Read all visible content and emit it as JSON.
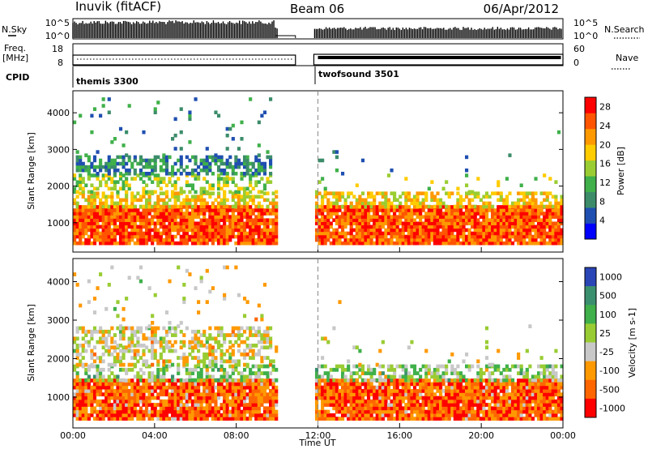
{
  "header": {
    "title": "Inuvik (fitACF)",
    "beam": "Beam 06",
    "date": "06/Apr/2012"
  },
  "status_panels": {
    "nsky_label": "N.Sky",
    "nsky_ticks": [
      "10^5",
      "10^0"
    ],
    "nsearch_label": "N.Search",
    "nsearch_ticks": [
      "10^5",
      "10^0"
    ],
    "freq_label_line1": "Freq.",
    "freq_label_line2": "[MHz]",
    "freq_ticks": [
      "18",
      "8"
    ],
    "nave_label": "Nave",
    "nave_ticks": [
      "60",
      "0"
    ],
    "cpid_label": "CPID",
    "cpid_segments": [
      {
        "name": "themis 3300",
        "start_hour": 0.0
      },
      {
        "name": "twofsound 3501",
        "start_hour": 12.0
      }
    ]
  },
  "x_axis": {
    "label": "Time UT",
    "ticks": [
      "00:00",
      "04:00",
      "08:00",
      "12:00",
      "16:00",
      "20:00",
      "00:00"
    ],
    "range_hours": [
      0,
      24
    ]
  },
  "chart_data": [
    {
      "type": "heatmap",
      "name": "power",
      "ylabel": "Slant Range [km]",
      "yticks": [
        "1000",
        "2000",
        "3000",
        "4000"
      ],
      "ylim": [
        200,
        4600
      ],
      "colorbar_label": "Power [dB]",
      "colorbar_ticks": [
        "4",
        "8",
        "12",
        "16",
        "20",
        "24",
        "28"
      ],
      "colorbar_range": [
        0,
        30
      ],
      "colorbar_colors": [
        "#0000ff",
        "#1f4fb0",
        "#3c8c6a",
        "#3fb04a",
        "#9acd32",
        "#ffcc00",
        "#ff9900",
        "#ff5500",
        "#ff0000"
      ],
      "data_gap_hours": [
        10.0,
        11.8
      ]
    },
    {
      "type": "heatmap",
      "name": "velocity",
      "ylabel": "Slant Range [km]",
      "yticks": [
        "1000",
        "2000",
        "3000",
        "4000"
      ],
      "ylim": [
        200,
        4600
      ],
      "colorbar_label": "Velocity [m s-1]",
      "colorbar_ticks": [
        "1000",
        "500",
        "100",
        "25",
        "-25",
        "-100",
        "-500",
        "-1000"
      ],
      "colorbar_range": [
        -1000,
        1000
      ],
      "colorbar_colors": [
        "#2a45b5",
        "#3a8f6e",
        "#3fb04a",
        "#99cc33",
        "#c8c8c8",
        "#ff9900",
        "#ff6600",
        "#ff0000"
      ],
      "data_gap_hours": [
        10.0,
        11.8
      ]
    }
  ]
}
